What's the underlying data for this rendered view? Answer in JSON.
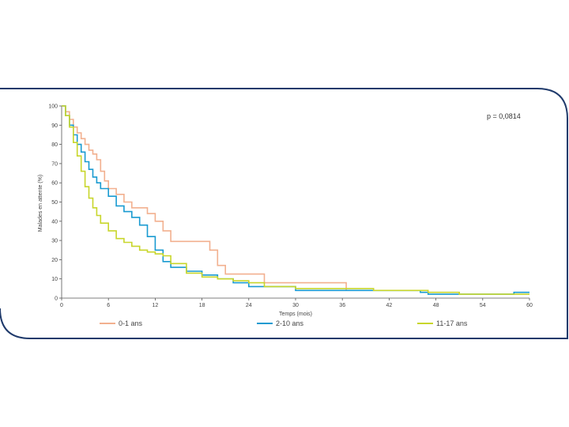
{
  "frame": {
    "border_color": "#1f3a6b"
  },
  "chart_data": {
    "type": "line",
    "step": true,
    "xlabel": "Temps (mois)",
    "ylabel": "Malades en attente (%)",
    "xlim": [
      0,
      60
    ],
    "ylim": [
      0,
      100
    ],
    "xticks": [
      "0",
      "6",
      "12",
      "18",
      "24",
      "30",
      "36",
      "42",
      "48",
      "54",
      "60"
    ],
    "yticks": [
      "0",
      "10",
      "20",
      "30",
      "40",
      "50",
      "60",
      "70",
      "80",
      "90",
      "100"
    ],
    "annotation": "p = 0,0814",
    "legend_position": "bottom",
    "series": [
      {
        "name": "0-1 ans",
        "color": "#f2b08f",
        "x": [
          0,
          0.5,
          1,
          1.5,
          2,
          2.5,
          3,
          3.5,
          4,
          4.5,
          5,
          5.5,
          6,
          7,
          8,
          9,
          11,
          12,
          13,
          14,
          19,
          20,
          21,
          22,
          26,
          36.5
        ],
        "y": [
          100,
          97,
          93,
          89,
          86,
          83,
          80,
          77,
          75,
          72,
          66,
          61,
          57,
          54,
          50,
          47,
          44,
          40,
          35,
          29.5,
          25,
          17,
          12.5,
          12.5,
          8,
          4
        ]
      },
      {
        "name": "2-10 ans",
        "color": "#1a9bd1",
        "x": [
          0,
          0.5,
          1,
          1.5,
          2,
          2.5,
          3,
          3.5,
          4,
          4.5,
          5,
          6,
          7,
          8,
          9,
          10,
          11,
          12,
          13,
          14,
          16,
          18,
          20,
          22,
          24,
          30,
          46,
          47,
          58,
          60
        ],
        "y": [
          100,
          95,
          90,
          85,
          80,
          76,
          71,
          67,
          63,
          60,
          57,
          53,
          48,
          45,
          42,
          38,
          32,
          25,
          19,
          16,
          14,
          12,
          10,
          8,
          6,
          4,
          3,
          2,
          3,
          3
        ]
      },
      {
        "name": "11-17 ans",
        "color": "#c8d62b",
        "x": [
          0,
          0.5,
          1,
          1.5,
          2,
          2.5,
          3,
          3.5,
          4,
          4.5,
          5,
          6,
          7,
          8,
          9,
          10,
          11,
          12,
          13,
          14,
          16,
          18,
          20,
          22,
          24,
          26,
          30,
          40,
          47,
          51,
          55,
          60
        ],
        "y": [
          100,
          95,
          89,
          81,
          74,
          66,
          58,
          52,
          47,
          43,
          39,
          35,
          31,
          29,
          27,
          25,
          24,
          23,
          22,
          18,
          13,
          11,
          10,
          9,
          8,
          6,
          5,
          4,
          3,
          2,
          2,
          2
        ]
      }
    ]
  }
}
